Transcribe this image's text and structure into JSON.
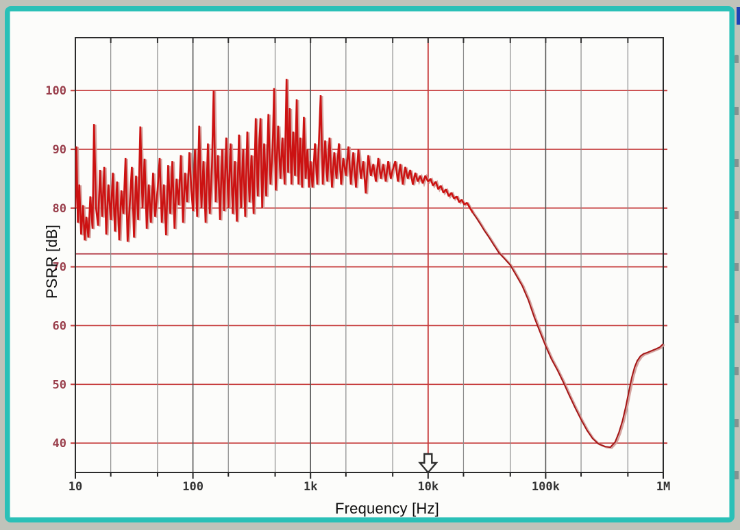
{
  "window": {
    "outer_bg": "#bfc3ba",
    "border_color": "#2ac0b7",
    "panel_bg": "#fcfcfa",
    "edge_sliver_color": "#1d43b5"
  },
  "chart_data": {
    "type": "line",
    "title": "",
    "xlabel": "Frequency [Hz]",
    "ylabel": "PSRR [dB]",
    "x_scale": "log",
    "xlim": [
      10,
      1000000
    ],
    "ylim": [
      35,
      109
    ],
    "grid": "on",
    "x_ticks": [
      {
        "value": 10,
        "label": "10"
      },
      {
        "value": 100,
        "label": "100"
      },
      {
        "value": 1000,
        "label": "1k"
      },
      {
        "value": 10000,
        "label": "10k"
      },
      {
        "value": 100000,
        "label": "100k"
      },
      {
        "value": 1000000,
        "label": "1M"
      }
    ],
    "y_ticks": [
      {
        "value": 100,
        "label": "100"
      },
      {
        "value": 90,
        "label": "90"
      },
      {
        "value": 80,
        "label": "80"
      },
      {
        "value": 70,
        "label": "70"
      },
      {
        "value": 60,
        "label": "60"
      },
      {
        "value": 50,
        "label": "50"
      },
      {
        "value": 40,
        "label": "40"
      }
    ],
    "x_gridlines_minor": [
      20,
      50,
      200,
      500,
      2000,
      5000,
      20000,
      50000,
      200000,
      500000
    ],
    "y_gridlines": [
      40,
      50,
      60,
      70,
      80,
      90,
      100
    ],
    "marker_h_line_db": 72.2,
    "cursor": {
      "freq_hz": 10000,
      "style": "hollow-down-arrow-on-x-axis"
    },
    "colors": {
      "h_grid": "#c63c3c",
      "marker_line": "#b23a46",
      "v_grid_major": "#555555",
      "v_grid_minor": "#8a8a8a",
      "cursor_line": "#cc3a3a",
      "frame": "#2b2b2b",
      "trace_noisy": "#cc1212",
      "trace_smooth": "#a51616",
      "trace_shadow": "#cf9a96",
      "x_tick_text": "#333333",
      "y_tick_text": "#993e4b",
      "arrow_fill": "#fcfcfa",
      "arrow_stroke": "#2f2f2f"
    },
    "series": [
      {
        "name": "PSRR",
        "points": [
          [
            10,
            80
          ],
          [
            10.2,
            90.5
          ],
          [
            10.5,
            77.5
          ],
          [
            10.8,
            84
          ],
          [
            11.2,
            75.5
          ],
          [
            11.6,
            80.5
          ],
          [
            12,
            74.5
          ],
          [
            12.4,
            78.5
          ],
          [
            12.9,
            75
          ],
          [
            13.4,
            82
          ],
          [
            14,
            76.5
          ],
          [
            14.4,
            94.3
          ],
          [
            15,
            80
          ],
          [
            15.6,
            77
          ],
          [
            16.2,
            86.5
          ],
          [
            16.9,
            78.5
          ],
          [
            17.6,
            87
          ],
          [
            18.3,
            75.5
          ],
          [
            19.1,
            84
          ],
          [
            20,
            78
          ],
          [
            20.8,
            86
          ],
          [
            21.7,
            76
          ],
          [
            22.6,
            84.5
          ],
          [
            23.6,
            74.5
          ],
          [
            24.6,
            83
          ],
          [
            25.6,
            79
          ],
          [
            26.7,
            88.5
          ],
          [
            27.8,
            74.3
          ],
          [
            29,
            80.5
          ],
          [
            30.2,
            87
          ],
          [
            31.5,
            75
          ],
          [
            32.8,
            85.5
          ],
          [
            34.2,
            78
          ],
          [
            35.7,
            93.9
          ],
          [
            37.2,
            80
          ],
          [
            38.8,
            88.4
          ],
          [
            40.4,
            76.5
          ],
          [
            42.1,
            84
          ],
          [
            43.9,
            77.5
          ],
          [
            45.8,
            86
          ],
          [
            47.7,
            78.5
          ],
          [
            50,
            83
          ],
          [
            52.1,
            88.5
          ],
          [
            54.3,
            77.5
          ],
          [
            56.6,
            84
          ],
          [
            59,
            75.4
          ],
          [
            61.5,
            87.3
          ],
          [
            64.1,
            79
          ],
          [
            66.8,
            88
          ],
          [
            69.7,
            76.5
          ],
          [
            72.6,
            85
          ],
          [
            75.7,
            80.5
          ],
          [
            78.9,
            89
          ],
          [
            82.3,
            77.5
          ],
          [
            85.7,
            86
          ],
          [
            89.4,
            81
          ],
          [
            93.2,
            89.5
          ],
          [
            97,
            83
          ],
          [
            100,
            79.5
          ],
          [
            104,
            90
          ],
          [
            108.6,
            78.5
          ],
          [
            113,
            94
          ],
          [
            118,
            80
          ],
          [
            123,
            88
          ],
          [
            128,
            77.5
          ],
          [
            134,
            91
          ],
          [
            139,
            79
          ],
          [
            145,
            87
          ],
          [
            150,
            100
          ],
          [
            156,
            81
          ],
          [
            163,
            89
          ],
          [
            170,
            78
          ],
          [
            177,
            90
          ],
          [
            184,
            79.5
          ],
          [
            192,
            92
          ],
          [
            200,
            80
          ],
          [
            209,
            91
          ],
          [
            218,
            79
          ],
          [
            227,
            88
          ],
          [
            236,
            77.7
          ],
          [
            246,
            92.5
          ],
          [
            256,
            80
          ],
          [
            267,
            90
          ],
          [
            278,
            78.5
          ],
          [
            290,
            93
          ],
          [
            302,
            81
          ],
          [
            315,
            89
          ],
          [
            328,
            79
          ],
          [
            342,
            95.3
          ],
          [
            356,
            82
          ],
          [
            365,
            90
          ],
          [
            375,
            95.3
          ],
          [
            388,
            80
          ],
          [
            403,
            91
          ],
          [
            420,
            82
          ],
          [
            438,
            96
          ],
          [
            456,
            84
          ],
          [
            476,
            90
          ],
          [
            490,
            100.4
          ],
          [
            505,
            83
          ],
          [
            530,
            94
          ],
          [
            554,
            85
          ],
          [
            577,
            92
          ],
          [
            601,
            84
          ],
          [
            625,
            102
          ],
          [
            645,
            86
          ],
          [
            665,
            97
          ],
          [
            688,
            84
          ],
          [
            712,
            93
          ],
          [
            737,
            85.5
          ],
          [
            763,
            98.5
          ],
          [
            790,
            84
          ],
          [
            818,
            92
          ],
          [
            847,
            83.5
          ],
          [
            877,
            95.5
          ],
          [
            908,
            85
          ],
          [
            940,
            90
          ],
          [
            970,
            83.5
          ],
          [
            1000,
            88
          ],
          [
            1040,
            83.5
          ],
          [
            1090,
            91
          ],
          [
            1140,
            84
          ],
          [
            1220,
            99.2
          ],
          [
            1270,
            84
          ],
          [
            1330,
            91.5
          ],
          [
            1390,
            84.5
          ],
          [
            1450,
            92
          ],
          [
            1520,
            83.5
          ],
          [
            1590,
            89.5
          ],
          [
            1660,
            85
          ],
          [
            1740,
            91
          ],
          [
            1820,
            84
          ],
          [
            1900,
            88.5
          ],
          [
            2000,
            85.5
          ],
          [
            2100,
            90.5
          ],
          [
            2200,
            84
          ],
          [
            2310,
            89.5
          ],
          [
            2430,
            83.5
          ],
          [
            2550,
            90
          ],
          [
            2680,
            85
          ],
          [
            2810,
            88
          ],
          [
            2950,
            82.5
          ],
          [
            3100,
            89
          ],
          [
            3260,
            85.5
          ],
          [
            3420,
            87.5
          ],
          [
            3590,
            84.5
          ],
          [
            3770,
            88.5
          ],
          [
            3960,
            85
          ],
          [
            4160,
            87.5
          ],
          [
            4360,
            84.5
          ],
          [
            4580,
            88
          ],
          [
            4810,
            85
          ],
          [
            5000,
            86.5
          ],
          [
            5260,
            88
          ],
          [
            5530,
            84.5
          ],
          [
            5800,
            87.5
          ],
          [
            6090,
            84
          ],
          [
            6400,
            87
          ],
          [
            6720,
            85
          ],
          [
            7050,
            86.5
          ],
          [
            7410,
            84
          ],
          [
            7780,
            86
          ],
          [
            8170,
            84.5
          ],
          [
            8580,
            85.5
          ],
          [
            9010,
            84.2
          ],
          [
            9460,
            85.5
          ],
          [
            10000,
            84.5
          ],
          [
            10500,
            85
          ],
          [
            11000,
            83.8
          ],
          [
            11600,
            84.5
          ],
          [
            12200,
            83.2
          ],
          [
            12800,
            83.8
          ],
          [
            13500,
            82.6
          ],
          [
            14200,
            83.2
          ],
          [
            15000,
            82
          ],
          [
            15800,
            82.6
          ],
          [
            16600,
            81.6
          ],
          [
            17500,
            82
          ],
          [
            18400,
            81
          ],
          [
            19300,
            81.4
          ],
          [
            20300,
            80.6
          ],
          [
            21400,
            80.9
          ],
          [
            22400,
            80.2
          ],
          [
            24000,
            79.2
          ],
          [
            26000,
            78.2
          ],
          [
            28000,
            77.2
          ],
          [
            30000,
            76.2
          ],
          [
            33000,
            75
          ],
          [
            36000,
            73.8
          ],
          [
            40000,
            72.4
          ],
          [
            45000,
            71.3
          ],
          [
            50000,
            70.3
          ],
          [
            56000,
            68.6
          ],
          [
            63000,
            66.8
          ],
          [
            71000,
            64.4
          ],
          [
            80000,
            61.4
          ],
          [
            90000,
            58.8
          ],
          [
            100000,
            56.5
          ],
          [
            112000,
            54.3
          ],
          [
            126000,
            52.4
          ],
          [
            141000,
            50.4
          ],
          [
            158000,
            48.2
          ],
          [
            178000,
            46
          ],
          [
            200000,
            44
          ],
          [
            224000,
            42.2
          ],
          [
            250000,
            40.8
          ],
          [
            280000,
            39.9
          ],
          [
            320000,
            39.4
          ],
          [
            355000,
            39.3
          ],
          [
            390000,
            40.2
          ],
          [
            420000,
            41.8
          ],
          [
            450000,
            43.8
          ],
          [
            480000,
            46.2
          ],
          [
            510000,
            48.8
          ],
          [
            540000,
            51.2
          ],
          [
            570000,
            52.9
          ],
          [
            600000,
            54
          ],
          [
            640000,
            54.8
          ],
          [
            680000,
            55.2
          ],
          [
            730000,
            55.4
          ],
          [
            790000,
            55.7
          ],
          [
            860000,
            56
          ],
          [
            930000,
            56.3
          ],
          [
            1000000,
            56.9
          ]
        ]
      }
    ]
  }
}
